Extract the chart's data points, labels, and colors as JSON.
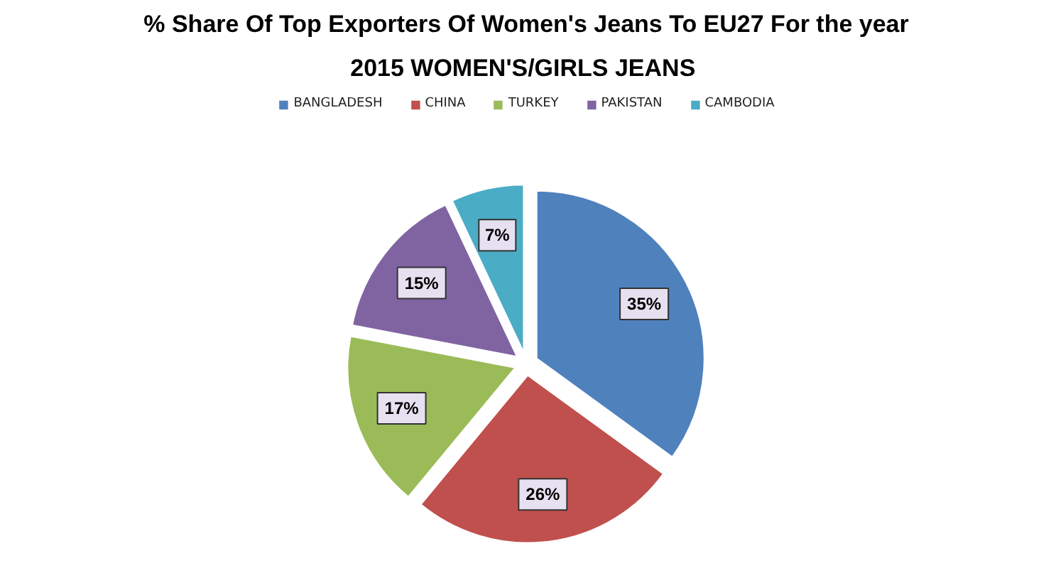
{
  "chart_data": {
    "type": "pie",
    "title": "% Share Of Top Exporters Of Women's Jeans To EU27 For the year",
    "subtitle": "2015 WOMEN'S/GIRLS  JEANS",
    "categories": [
      "BANGLADESH",
      "CHINA",
      "TURKEY",
      "PAKISTAN",
      "CAMBODIA"
    ],
    "values": [
      35,
      26,
      17,
      15,
      7
    ],
    "colors": [
      "#4f81bd",
      "#c0504d",
      "#9bbb59",
      "#8064a2",
      "#4bacc6"
    ],
    "value_labels": [
      "35%",
      "26%",
      "17%",
      "15%",
      "7%"
    ],
    "legend": "top"
  }
}
